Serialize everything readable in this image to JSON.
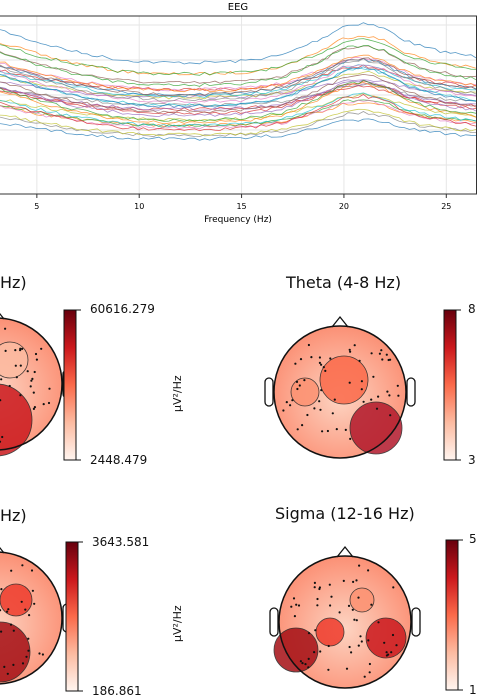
{
  "psd_panel": {
    "title": "EEG",
    "xlabel": "Frequency (Hz)"
  },
  "chart_data": [
    {
      "type": "line",
      "title": "EEG",
      "xlabel": "Frequency (Hz)",
      "xlim": [
        3.2,
        26.5
      ],
      "x_ticks": [
        5,
        10,
        15,
        20,
        25
      ],
      "grid": true,
      "n_traces": 34,
      "band_center_profile": {
        "x": [
          3.2,
          5,
          7,
          9,
          11,
          13,
          15,
          17,
          19,
          20,
          21,
          22,
          23,
          24,
          25,
          26.5
        ],
        "y_rel": [
          0.55,
          0.47,
          0.4,
          0.35,
          0.33,
          0.33,
          0.34,
          0.38,
          0.5,
          0.58,
          0.6,
          0.56,
          0.48,
          0.43,
          0.4,
          0.37
        ]
      }
    },
    {
      "type": "heatmap",
      "title": "Hz)",
      "colorbar": {
        "max": "60616.279",
        "min": "2448.479",
        "unit": "µV²/Hz"
      }
    },
    {
      "type": "heatmap",
      "title": "Theta (4-8 Hz)",
      "colorbar": {
        "max": "8",
        "min": "3"
      }
    },
    {
      "type": "heatmap",
      "title": "Hz)",
      "colorbar": {
        "max": "3643.581",
        "min": "186.861",
        "unit": "µV²/Hz"
      }
    },
    {
      "type": "heatmap",
      "title": "Sigma (12-16 Hz)",
      "colorbar": {
        "max": "5",
        "min": "1"
      }
    }
  ],
  "topomaps": [
    {
      "title": "Hz)",
      "cb_max": "60616.279",
      "cb_min": "2448.479",
      "unit": "µV²/Hz"
    },
    {
      "title": "Theta (4-8 Hz)",
      "cb_max": "8",
      "cb_min": "3"
    },
    {
      "title": "Hz)",
      "cb_max": "3643.581",
      "cb_min": "186.861",
      "unit": "µV²/Hz"
    },
    {
      "title": "Sigma (12-16 Hz)",
      "cb_max": "5",
      "cb_min": "1"
    }
  ],
  "colors": {
    "reds_dark": "#67000d",
    "reds_light": "#fff5f0",
    "axis": "#333333",
    "grid": "#e6e6e6"
  }
}
